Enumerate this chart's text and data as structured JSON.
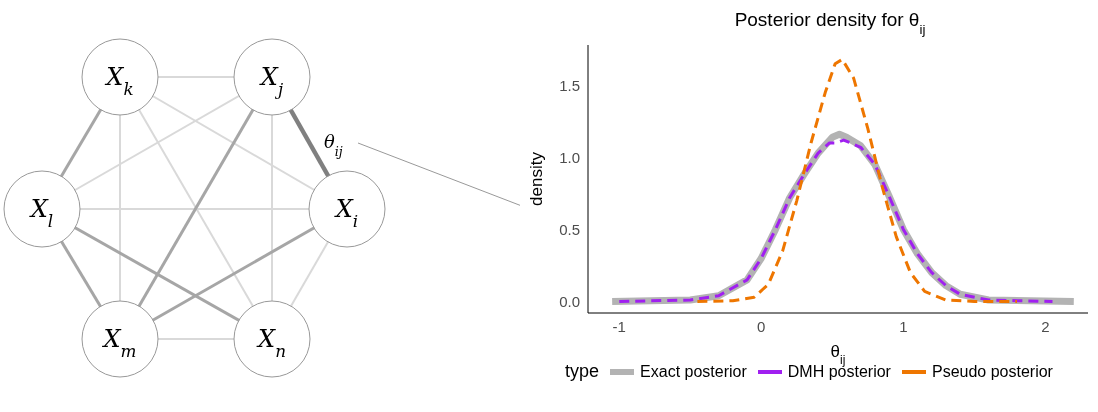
{
  "chart_data": {
    "type": "line",
    "title": "Posterior density for θ$_{ij}$",
    "xlabel": "θ$_{ij}$",
    "ylabel": "density",
    "legend_title": "type",
    "legend": "bottom",
    "grid": false,
    "xlim": [
      -1.22,
      2.3
    ],
    "xticks": [
      -1,
      0,
      1,
      2
    ],
    "ylim": [
      -0.08,
      1.78
    ],
    "yticks": [
      {
        "value": 0,
        "label": "0.0"
      },
      0.5,
      {
        "value": 1,
        "label": "1.0"
      },
      1.5
    ],
    "annotations": [
      "X$_{k}$",
      "X$_{j}$",
      "X$_{l}$",
      "X$_{i}$",
      "X$_{m}$",
      "X$_{n}$",
      "θ$_{ij}$"
    ],
    "series": [
      {
        "name": "Exact posterior",
        "color": "#b3b3b3",
        "line_style": "solid",
        "x": [
          -1.05,
          -0.5,
          -0.3,
          -0.1,
          0,
          0.1,
          0.2,
          0.3,
          0.4,
          0.5,
          0.55,
          0.6,
          0.7,
          0.8,
          0.9,
          1.0,
          1.1,
          1.2,
          1.3,
          1.4,
          1.6,
          2.2
        ],
        "values": [
          0,
          0.01,
          0.04,
          0.15,
          0.3,
          0.5,
          0.72,
          0.88,
          1.03,
          1.14,
          1.16,
          1.14,
          1.08,
          0.95,
          0.73,
          0.5,
          0.33,
          0.2,
          0.11,
          0.05,
          0.01,
          0
        ]
      },
      {
        "name": "DMH posterior",
        "color": "#a020f0",
        "line_style": "dashed",
        "x": [
          -1.0,
          -0.5,
          -0.3,
          -0.1,
          0,
          0.1,
          0.2,
          0.3,
          0.4,
          0.48,
          0.52,
          0.58,
          0.7,
          0.8,
          0.9,
          1.0,
          1.1,
          1.2,
          1.3,
          1.4,
          1.6,
          2.05
        ],
        "values": [
          0,
          0.01,
          0.04,
          0.15,
          0.3,
          0.5,
          0.72,
          0.88,
          1.03,
          1.1,
          1.1,
          1.12,
          1.07,
          0.95,
          0.73,
          0.5,
          0.33,
          0.2,
          0.11,
          0.05,
          0.01,
          0
        ]
      },
      {
        "name": "Pseudo posterior",
        "color": "#ee7600",
        "line_style": "dashed",
        "x": [
          -0.45,
          -0.2,
          -0.05,
          0.05,
          0.15,
          0.25,
          0.35,
          0.45,
          0.52,
          0.57,
          0.65,
          0.75,
          0.85,
          0.95,
          1.05,
          1.15,
          1.3,
          1.5,
          1.8
        ],
        "values": [
          0,
          0.005,
          0.03,
          0.12,
          0.35,
          0.7,
          1.1,
          1.45,
          1.65,
          1.68,
          1.55,
          1.2,
          0.8,
          0.45,
          0.2,
          0.07,
          0.01,
          0,
          0
        ]
      }
    ]
  }
}
